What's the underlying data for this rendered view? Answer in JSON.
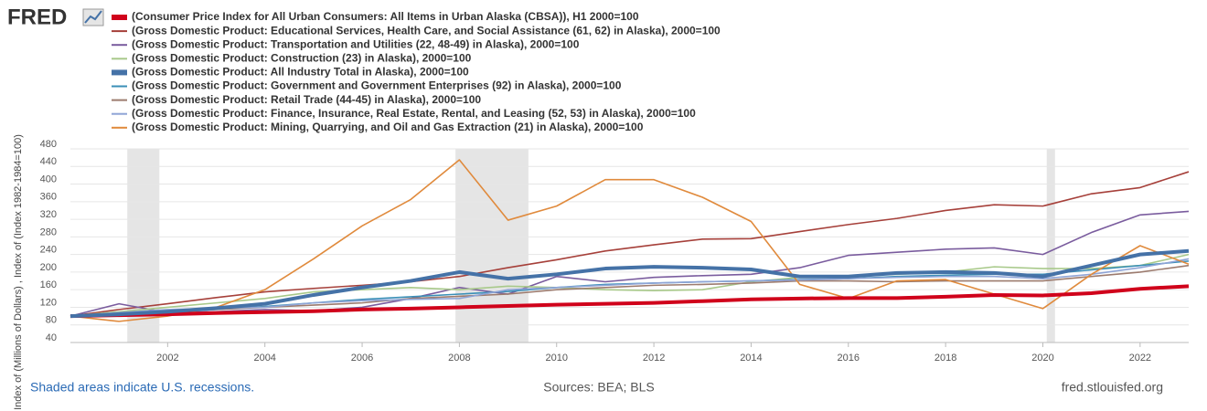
{
  "chart_data": {
    "type": "line",
    "logo": "FRED",
    "ylabel": "Index of (Millions of Dollars) , Index of (Index 1982-1984=100)",
    "note": "Shaded areas indicate U.S. recessions.",
    "source": "Sources: BEA; BLS",
    "site": "fred.stlouisfed.org",
    "x": [
      2000,
      2001,
      2002,
      2003,
      2004,
      2005,
      2006,
      2007,
      2008,
      2009,
      2010,
      2011,
      2012,
      2013,
      2014,
      2015,
      2016,
      2017,
      2018,
      2019,
      2020,
      2021,
      2022,
      2023
    ],
    "xlim": [
      2000,
      2023
    ],
    "xticks": [
      2002,
      2004,
      2006,
      2008,
      2010,
      2012,
      2014,
      2016,
      2018,
      2020,
      2022
    ],
    "ylim": [
      40,
      480
    ],
    "yticks": [
      40,
      80,
      120,
      160,
      200,
      240,
      280,
      320,
      360,
      400,
      440,
      480
    ],
    "grid": true,
    "recessions": [
      [
        2001.17,
        2001.83
      ],
      [
        2007.92,
        2009.42
      ],
      [
        2020.08,
        2020.25
      ]
    ],
    "series": [
      {
        "name": "(Consumer Price Index for All Urban Consumers: All Items in Urban Alaska (CBSA)), H1 2000=100",
        "color": "#d0021b",
        "line_width": 4,
        "values": [
          100,
          102,
          104,
          107,
          109,
          111,
          115,
          117,
          120,
          123,
          126,
          128,
          130,
          134,
          138,
          140,
          141,
          141,
          144,
          148,
          147,
          152,
          162,
          168
        ]
      },
      {
        "name": "(Gross Domestic Product: Educational Services, Health Care, and Social Assistance (61, 62) in Alaska), 2000=100",
        "color": "#a6403a",
        "line_width": 1.6,
        "values": [
          100,
          115,
          128,
          142,
          155,
          163,
          170,
          178,
          190,
          210,
          228,
          248,
          262,
          275,
          276,
          292,
          308,
          322,
          340,
          353,
          350,
          378,
          392,
          428
        ]
      },
      {
        "name": "(Gross Domestic Product: Transportation and Utilities (22, 48-49) in Alaska), 2000=100",
        "color": "#7a5c9e",
        "line_width": 1.6,
        "values": [
          100,
          128,
          108,
          110,
          115,
          112,
          120,
          140,
          165,
          150,
          190,
          178,
          188,
          192,
          195,
          210,
          238,
          245,
          252,
          255,
          240,
          290,
          330,
          338
        ]
      },
      {
        "name": "(Gross Domestic Product: Construction (23) in Alaska), 2000=100",
        "color": "#a8c98a",
        "line_width": 1.6,
        "values": [
          100,
          110,
          120,
          130,
          140,
          155,
          160,
          165,
          160,
          168,
          165,
          160,
          158,
          160,
          178,
          188,
          192,
          195,
          200,
          212,
          208,
          208,
          215,
          240
        ]
      },
      {
        "name": "(Gross Domestic Product: All Industry Total in Alaska), 2000=100",
        "color": "#4572a7",
        "line_width": 4,
        "values": [
          100,
          104,
          110,
          118,
          128,
          148,
          165,
          180,
          200,
          185,
          195,
          208,
          212,
          210,
          206,
          190,
          190,
          198,
          200,
          198,
          190,
          215,
          240,
          248
        ]
      },
      {
        "name": "(Gross Domestic Product: Government and Government Enterprises (92) in Alaska), 2000=100",
        "color": "#3a8fb7",
        "line_width": 1.6,
        "values": [
          100,
          103,
          108,
          115,
          122,
          130,
          138,
          144,
          150,
          156,
          165,
          172,
          175,
          178,
          180,
          183,
          185,
          190,
          193,
          195,
          195,
          205,
          215,
          225
        ]
      },
      {
        "name": "(Gross Domestic Product: Retail Trade (44-45) in Alaska), 2000=100",
        "color": "#9c7b6e",
        "line_width": 1.6,
        "values": [
          100,
          105,
          110,
          115,
          120,
          125,
          130,
          140,
          145,
          150,
          160,
          165,
          170,
          172,
          175,
          180,
          180,
          178,
          180,
          180,
          180,
          190,
          200,
          215
        ]
      },
      {
        "name": "(Gross Domestic Product: Finance, Insurance, Real Estate, Rental, and Leasing (52, 53) in Alaska), 2000=100",
        "color": "#8fa4d6",
        "line_width": 1.6,
        "values": [
          100,
          108,
          115,
          118,
          120,
          130,
          135,
          138,
          140,
          160,
          165,
          170,
          175,
          178,
          180,
          182,
          185,
          188,
          190,
          190,
          185,
          195,
          210,
          230
        ]
      },
      {
        "name": "(Gross Domestic Product: Mining, Quarrying, and Oil and Gas Extraction (21) in Alaska), 2000=100",
        "color": "#e08a3c",
        "line_width": 1.6,
        "values": [
          100,
          88,
          100,
          120,
          160,
          230,
          305,
          365,
          455,
          318,
          350,
          410,
          410,
          370,
          315,
          172,
          140,
          180,
          183,
          150,
          117,
          195,
          260,
          218
        ]
      }
    ]
  }
}
